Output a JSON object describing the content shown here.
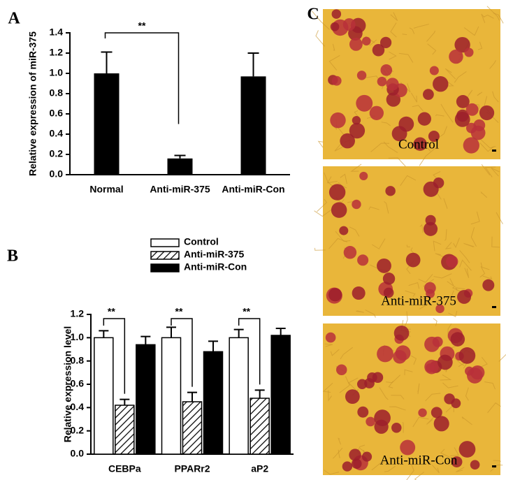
{
  "chart_data": [
    {
      "type": "bar",
      "panel_label": "A",
      "ylabel": "Relative expression of miR-375",
      "categories": [
        "Normal",
        "Anti-miR-375",
        "Anti-miR-Con"
      ],
      "values": [
        1.0,
        0.16,
        0.97
      ],
      "errors": [
        0.21,
        0.03,
        0.23
      ],
      "color": "#000000",
      "ylim": [
        0,
        1.4
      ],
      "yticks": [
        {
          "value": 0,
          "label": "0.0"
        },
        0.2,
        0.4,
        0.6,
        0.8,
        {
          "value": 1,
          "label": "1.0"
        },
        1.2,
        1.4
      ],
      "annotations": [
        "**"
      ]
    },
    {
      "type": "grouped_bar",
      "panel_label": "B",
      "ylabel": "Relative expression level",
      "categories": [
        "CEBPa",
        "PPARr2",
        "aP2"
      ],
      "series": [
        {
          "name": "Control",
          "color": "#ffffff",
          "values": [
            1.0,
            1.0,
            1.0
          ],
          "errors": [
            0.06,
            0.09,
            0.07
          ]
        },
        {
          "name": "Anti-miR-375",
          "color": "#000000",
          "hatch": true,
          "values": [
            0.42,
            0.45,
            0.48
          ],
          "errors": [
            0.05,
            0.08,
            0.07
          ]
        },
        {
          "name": "Anti-miR-Con",
          "color": "#000000",
          "values": [
            0.94,
            0.88,
            1.02
          ],
          "errors": [
            0.07,
            0.09,
            0.06
          ]
        }
      ],
      "ylim": [
        0,
        1.2
      ],
      "yticks": [
        {
          "value": 0,
          "label": "0.0"
        },
        0.2,
        0.4,
        0.6,
        0.8,
        {
          "value": 1,
          "label": "1.0"
        },
        1.2
      ],
      "legend": "top",
      "annotations": [
        "**",
        "**",
        "**"
      ]
    }
  ],
  "image_panel": {
    "panel_label": "C",
    "labels": [
      "Control",
      "Anti-miR-375",
      "Anti-miR-Con"
    ]
  }
}
